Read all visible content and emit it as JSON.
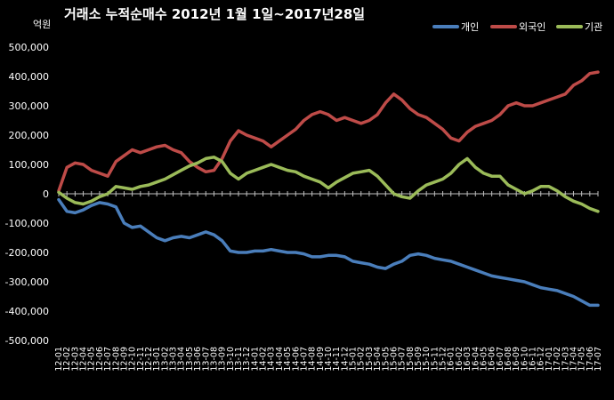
{
  "chart_data": {
    "type": "line",
    "title": "거래소 누적순매수 2012년 1월 1일~2017년28일",
    "unit_label": "억원",
    "ylim": [
      -500000,
      500000
    ],
    "yticks": [
      -500000,
      -400000,
      -300000,
      -200000,
      -100000,
      0,
      100000,
      200000,
      300000,
      400000,
      500000
    ],
    "ytick_labels": [
      "-500,000",
      "-400,000",
      "-300,000",
      "-200,000",
      "-100,000",
      "0",
      "100,000",
      "200,000",
      "300,000",
      "400,000",
      "500,000"
    ],
    "grid": false,
    "legend_position": "top-right",
    "x": [
      "12-01",
      "12-02",
      "12-03",
      "12-04",
      "12-05",
      "12-06",
      "12-07",
      "12-08",
      "12-09",
      "12-10",
      "12-11",
      "12-12",
      "13-01",
      "13-02",
      "13-03",
      "13-04",
      "13-05",
      "13-06",
      "13-07",
      "13-08",
      "13-09",
      "13-10",
      "13-11",
      "13-12",
      "14-01",
      "14-02",
      "14-03",
      "14-04",
      "14-05",
      "14-06",
      "14-07",
      "14-08",
      "14-09",
      "14-10",
      "14-11",
      "14-12",
      "15-01",
      "15-02",
      "15-03",
      "15-04",
      "15-05",
      "15-06",
      "15-07",
      "15-08",
      "15-09",
      "15-10",
      "15-11",
      "15-12",
      "16-01",
      "16-02",
      "16-03",
      "16-04",
      "16-05",
      "16-06",
      "16-07",
      "16-08",
      "16-09",
      "16-10",
      "16-11",
      "16-12",
      "17-01",
      "17-02",
      "17-03",
      "17-04",
      "17-05",
      "17-06",
      "17-07"
    ],
    "series": [
      {
        "name": "개인",
        "color": "#4a7ebb",
        "values": [
          -20000,
          -60000,
          -65000,
          -55000,
          -40000,
          -30000,
          -35000,
          -45000,
          -100000,
          -115000,
          -110000,
          -130000,
          -150000,
          -160000,
          -150000,
          -145000,
          -150000,
          -140000,
          -130000,
          -140000,
          -160000,
          -195000,
          -200000,
          -200000,
          -195000,
          -195000,
          -190000,
          -195000,
          -200000,
          -200000,
          -205000,
          -215000,
          -215000,
          -210000,
          -210000,
          -215000,
          -230000,
          -235000,
          -240000,
          -250000,
          -255000,
          -240000,
          -230000,
          -210000,
          -205000,
          -210000,
          -220000,
          -225000,
          -230000,
          -240000,
          -250000,
          -260000,
          -270000,
          -280000,
          -285000,
          -290000,
          -295000,
          -300000,
          -310000,
          -320000,
          -325000,
          -330000,
          -340000,
          -350000,
          -365000,
          -380000,
          -380000
        ]
      },
      {
        "name": "외국인",
        "color": "#be4b48",
        "values": [
          10000,
          90000,
          105000,
          100000,
          80000,
          70000,
          60000,
          110000,
          130000,
          150000,
          140000,
          150000,
          160000,
          165000,
          150000,
          140000,
          110000,
          90000,
          75000,
          80000,
          120000,
          180000,
          215000,
          200000,
          190000,
          180000,
          160000,
          180000,
          200000,
          220000,
          250000,
          270000,
          280000,
          270000,
          250000,
          260000,
          250000,
          240000,
          250000,
          270000,
          310000,
          340000,
          320000,
          290000,
          270000,
          260000,
          240000,
          220000,
          190000,
          180000,
          210000,
          230000,
          240000,
          250000,
          270000,
          300000,
          310000,
          300000,
          300000,
          310000,
          320000,
          330000,
          340000,
          370000,
          385000,
          410000,
          415000
        ]
      },
      {
        "name": "기관",
        "color": "#9bbb59",
        "values": [
          5000,
          -15000,
          -30000,
          -35000,
          -25000,
          -10000,
          0,
          25000,
          20000,
          15000,
          25000,
          30000,
          40000,
          50000,
          65000,
          80000,
          95000,
          105000,
          120000,
          125000,
          110000,
          70000,
          50000,
          70000,
          80000,
          90000,
          100000,
          90000,
          80000,
          75000,
          60000,
          50000,
          40000,
          20000,
          40000,
          55000,
          70000,
          75000,
          80000,
          60000,
          30000,
          0,
          -10000,
          -15000,
          10000,
          30000,
          40000,
          50000,
          70000,
          100000,
          120000,
          90000,
          70000,
          60000,
          60000,
          30000,
          15000,
          0,
          10000,
          25000,
          25000,
          10000,
          -10000,
          -25000,
          -35000,
          -50000,
          -60000
        ]
      }
    ]
  }
}
